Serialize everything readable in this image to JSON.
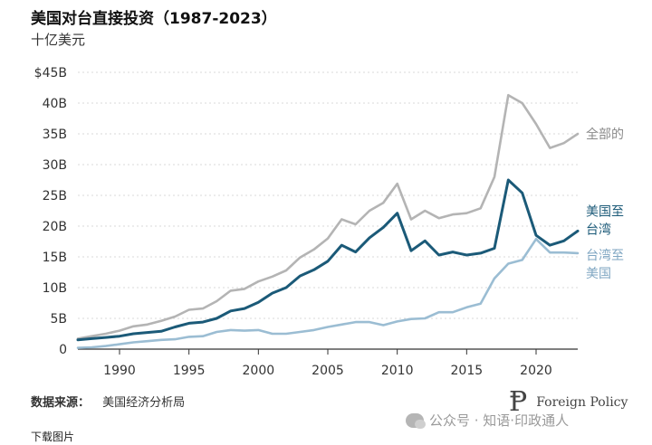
{
  "title": "美国对台直接投资（1987-2023）",
  "subtitle": "十亿美元",
  "source": {
    "label": "数据来源：",
    "value": "美国经济分析局"
  },
  "download": "下载图片",
  "brand": {
    "name": "Foreign Policy"
  },
  "watermark": {
    "icon": "wechat-icon",
    "text": "公众号 · 知语·印政通人"
  },
  "chart_data": {
    "type": "line",
    "title": "美国对台直接投资（1987-2023）",
    "ylabel": "十亿美元",
    "xlabel": "",
    "xlim": [
      1987,
      2023
    ],
    "ylim": [
      0,
      45
    ],
    "grid": true,
    "y_ticks": [
      {
        "value": 0,
        "label": "0"
      },
      {
        "value": 5,
        "label": "5B"
      },
      {
        "value": 10,
        "label": "10B"
      },
      {
        "value": 15,
        "label": "15B"
      },
      {
        "value": 20,
        "label": "20B"
      },
      {
        "value": 25,
        "label": "25B"
      },
      {
        "value": 30,
        "label": "30B"
      },
      {
        "value": 35,
        "label": "35B"
      },
      {
        "value": 40,
        "label": "40B"
      },
      {
        "value": 45,
        "label": "$45B"
      }
    ],
    "x_ticks": [
      1990,
      1995,
      2000,
      2005,
      2010,
      2015,
      2020
    ],
    "x": [
      1987,
      1988,
      1989,
      1990,
      1991,
      1992,
      1993,
      1994,
      1995,
      1996,
      1997,
      1998,
      1999,
      2000,
      2001,
      2002,
      2003,
      2004,
      2005,
      2006,
      2007,
      2008,
      2009,
      2010,
      2011,
      2012,
      2013,
      2014,
      2015,
      2016,
      2017,
      2018,
      2019,
      2020,
      2021,
      2022,
      2023
    ],
    "series": [
      {
        "name": "全部的",
        "color": "#b4b4b4",
        "values": [
          1.7,
          2.1,
          2.5,
          3.0,
          3.7,
          4.0,
          4.6,
          5.3,
          6.4,
          6.6,
          7.8,
          9.5,
          9.8,
          11.0,
          11.8,
          12.8,
          14.9,
          16.2,
          18.0,
          21.1,
          20.3,
          22.5,
          23.8,
          26.9,
          21.1,
          22.5,
          21.3,
          21.9,
          22.1,
          22.9,
          28.0,
          41.3,
          40.0,
          36.6,
          32.7,
          33.5,
          35.0
        ]
      },
      {
        "name": "美国至台湾",
        "color": "#1b5a78",
        "values": [
          1.5,
          1.7,
          1.9,
          2.1,
          2.5,
          2.7,
          2.9,
          3.6,
          4.2,
          4.4,
          5.0,
          6.2,
          6.6,
          7.6,
          9.1,
          10.0,
          11.9,
          12.9,
          14.3,
          16.9,
          15.8,
          18.1,
          19.8,
          22.1,
          16.0,
          17.6,
          15.3,
          15.8,
          15.3,
          15.6,
          16.4,
          27.5,
          25.4,
          18.5,
          16.9,
          17.6,
          19.2
        ]
      },
      {
        "name": "台湾至美国",
        "color": "#9bbdd3",
        "values": [
          0.2,
          0.3,
          0.5,
          0.8,
          1.1,
          1.3,
          1.5,
          1.6,
          2.0,
          2.1,
          2.8,
          3.1,
          3.0,
          3.1,
          2.5,
          2.5,
          2.8,
          3.1,
          3.6,
          4.0,
          4.4,
          4.4,
          3.9,
          4.5,
          4.9,
          5.0,
          6.0,
          6.0,
          6.8,
          7.4,
          11.5,
          13.9,
          14.5,
          17.9,
          15.7,
          15.7,
          15.6
        ]
      }
    ],
    "series_labels": [
      {
        "lines": [
          "全部的"
        ]
      },
      {
        "lines": [
          "美国至",
          "台湾"
        ]
      },
      {
        "lines": [
          "台湾至",
          "美国"
        ]
      }
    ]
  }
}
